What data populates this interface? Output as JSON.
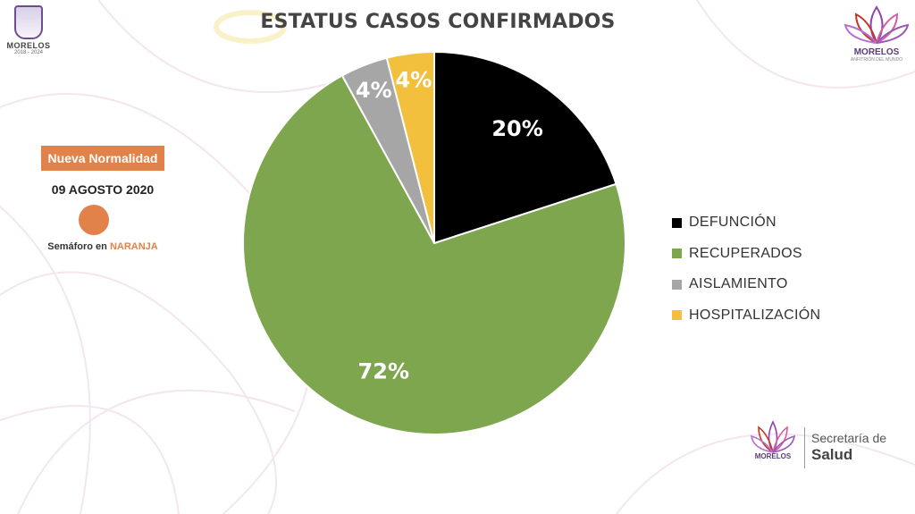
{
  "header": {
    "title": "ESTATUS CASOS CONFIRMADOS"
  },
  "logos": {
    "left": {
      "name": "MORELOS",
      "years": "2018 - 2024"
    },
    "right": {
      "name": "MORELOS",
      "sub": "ANFITRIÓN DEL MUNDO"
    },
    "footer": {
      "name": "MORELOS",
      "secretaria": "Secretaría de",
      "salud": "Salud"
    }
  },
  "status_panel": {
    "badge": "Nueva Normalidad",
    "date": "09 AGOSTO 2020",
    "semaforo_prefix": "Semáforo en",
    "semaforo_color_word": "NARANJA",
    "semaforo_color": "#e0824a"
  },
  "chart_data": {
    "type": "pie",
    "title": "ESTATUS CASOS CONFIRMADOS",
    "legend_placement": "right",
    "slices": [
      {
        "label": "DEFUNCIÓN",
        "value": 20,
        "display": "20%",
        "color": "#000000"
      },
      {
        "label": "RECUPERADOS",
        "value": 72,
        "display": "72%",
        "color": "#7ea64e"
      },
      {
        "label": "AISLAMIENTO",
        "value": 4,
        "display": "4%",
        "color": "#a6a6a6"
      },
      {
        "label": "HOSPITALIZACIÓN",
        "value": 4,
        "display": "4%",
        "color": "#f2c03d"
      }
    ]
  }
}
